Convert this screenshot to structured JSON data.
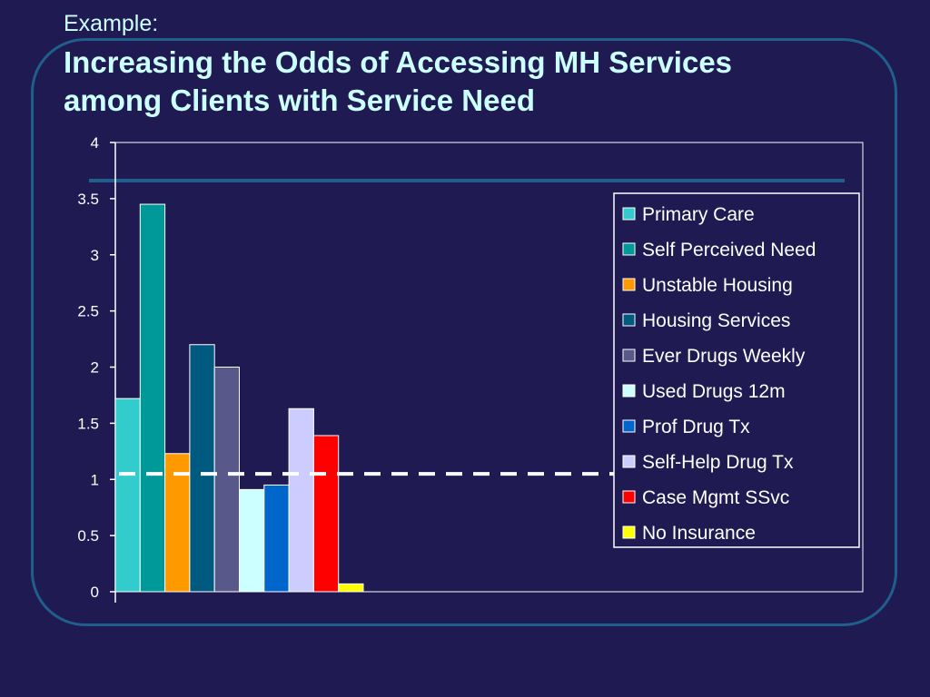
{
  "slide": {
    "subtitle": "Example:",
    "title_line1": "Increasing the Odds of Accessing MH Services",
    "title_line2": "among Clients with Service Need"
  },
  "colors": {
    "background": "#201a52",
    "frame": "#1f5f8c",
    "title": "#ccffff",
    "reference_line": "#ffffff"
  },
  "chart_data": {
    "type": "bar",
    "ylim": [
      0,
      4
    ],
    "yticks": [
      0,
      0.5,
      1,
      1.5,
      2,
      2.5,
      3,
      3.5,
      4
    ],
    "ytick_labels": [
      "0",
      "0.5",
      "1",
      "1.5",
      "2",
      "2.5",
      "3",
      "3.5",
      "4"
    ],
    "grid": false,
    "legend_position": "right",
    "reference_line": 1.05,
    "series": [
      {
        "name": "Primary Care",
        "value": 1.72,
        "color": "#33cccc"
      },
      {
        "name": "Self Perceived Need",
        "value": 3.45,
        "color": "#009999"
      },
      {
        "name": "Unstable Housing",
        "value": 1.23,
        "color": "#ff9900"
      },
      {
        "name": "Housing Services",
        "value": 2.2,
        "color": "#005a80"
      },
      {
        "name": "Ever Drugs Weekly",
        "value": 2.0,
        "color": "#58588a"
      },
      {
        "name": "Used Drugs 12m",
        "value": 0.91,
        "color": "#ccffff"
      },
      {
        "name": "Prof Drug Tx",
        "value": 0.95,
        "color": "#0066cc"
      },
      {
        "name": "Self-Help Drug Tx",
        "value": 1.63,
        "color": "#ccccff"
      },
      {
        "name": "Case Mgmt SSvc",
        "value": 1.39,
        "color": "#ff0000"
      },
      {
        "name": "No Insurance",
        "value": 0.07,
        "color": "#ffff00"
      }
    ]
  }
}
